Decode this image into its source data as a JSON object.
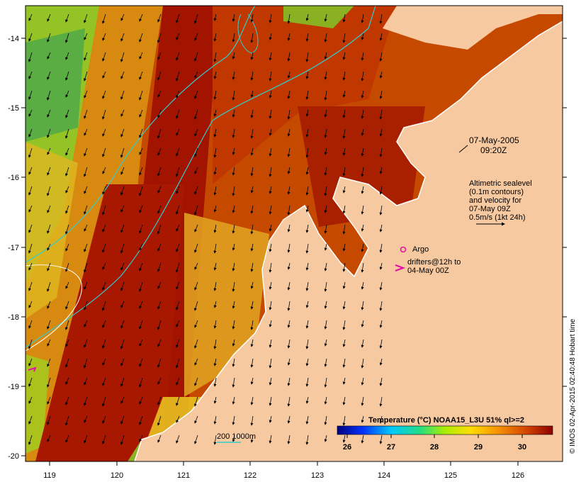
{
  "map": {
    "colors": {
      "land": "#f7c9a0",
      "sst_hot": "#a81800",
      "sst_warm": "#c24200",
      "sst_mid": "#d87000",
      "sst_cool": "#e8b000",
      "sst_green": "#7ccf2a",
      "coast_line": "#ffffff",
      "contour": "#33cccc",
      "argo": "#e0139e"
    },
    "x_axis": {
      "ticks": [
        "119",
        "120",
        "121",
        "122",
        "123",
        "124",
        "125",
        "126"
      ]
    },
    "y_axis": {
      "ticks": [
        "-14",
        "-15",
        "-16",
        "-17",
        "-18",
        "-19",
        "-20"
      ]
    },
    "date_label": {
      "line1": "07-May-2005",
      "line2": "09:20Z"
    },
    "legend_text": {
      "line1": "Altimetric sealevel",
      "line2": "(0.1m contours)",
      "line3": "and velocity for",
      "line4": "07-May 09Z",
      "line5": "0.5m/s (1kt 24h)"
    },
    "argo_label": "Argo",
    "drifters_label": {
      "line1": "drifters@12h to",
      "line2": "04-May 00Z"
    },
    "depth_label": "200  1000m",
    "colorbar": {
      "title": "Temperature (°C) NOAA15_L3U 51% ql>=2",
      "ticks": [
        "26",
        "27",
        "28",
        "29",
        "30"
      ]
    },
    "credit": "© IMOS 02-Apr-2015 02:40:48 Hobart time"
  }
}
